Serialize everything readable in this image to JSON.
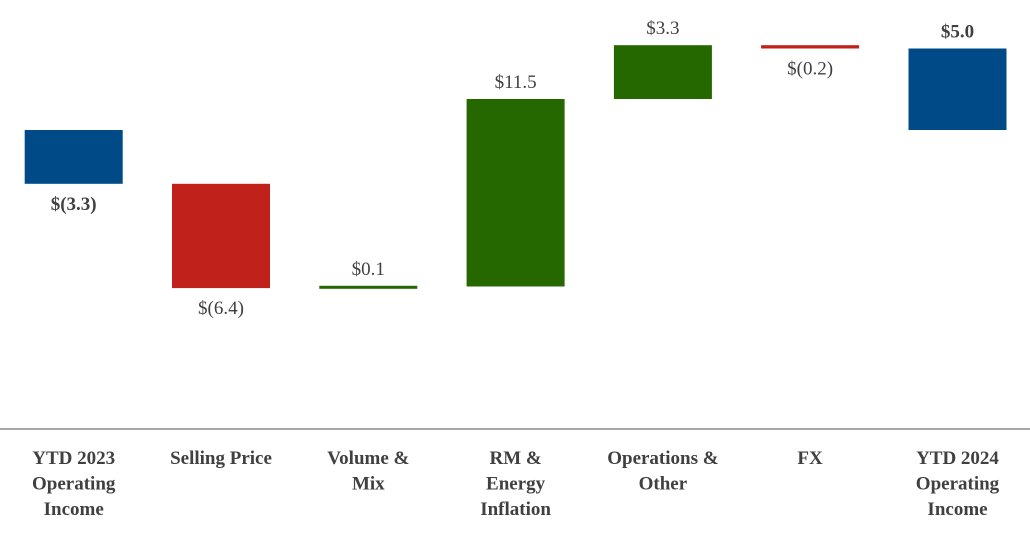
{
  "chart_data": {
    "type": "waterfall",
    "title": "",
    "xlabel": "",
    "ylabel": "",
    "ylim": [
      -11,
      6.5
    ],
    "categories": [
      [
        "YTD 2023",
        "Operating",
        "Income"
      ],
      [
        "Selling Price"
      ],
      [
        "Volume &",
        "Mix"
      ],
      [
        "RM &",
        "Energy",
        "Inflation"
      ],
      [
        "Operations &",
        "Other"
      ],
      [
        "FX"
      ],
      [
        "YTD 2024",
        "Operating",
        "Income"
      ]
    ],
    "steps": [
      {
        "kind": "total",
        "start": 0,
        "end": -3.3,
        "label": "$(3.3)",
        "color": "#004b87",
        "bold": true,
        "label_pos": "below"
      },
      {
        "kind": "delta",
        "start": -3.3,
        "end": -9.7,
        "label": "$(6.4)",
        "color": "#c0211a",
        "bold": false,
        "label_pos": "below"
      },
      {
        "kind": "delta",
        "start": -9.7,
        "end": -9.6,
        "label": "$0.1",
        "color": "#256800",
        "bold": false,
        "label_pos": "above"
      },
      {
        "kind": "delta",
        "start": -9.6,
        "end": 1.9,
        "label": "$11.5",
        "color": "#256800",
        "bold": false,
        "label_pos": "above"
      },
      {
        "kind": "delta",
        "start": 1.9,
        "end": 5.2,
        "label": "$3.3",
        "color": "#256800",
        "bold": false,
        "label_pos": "above"
      },
      {
        "kind": "delta",
        "start": 5.2,
        "end": 5.0,
        "label": "$(0.2)",
        "color": "#c0211a",
        "bold": false,
        "label_pos": "below"
      },
      {
        "kind": "total",
        "start": 0,
        "end": 5.0,
        "label": "$5.0",
        "color": "#004b87",
        "bold": true,
        "label_pos": "above"
      }
    ],
    "axis_color": "#a6a6a6",
    "grid": false,
    "legend": "none"
  }
}
